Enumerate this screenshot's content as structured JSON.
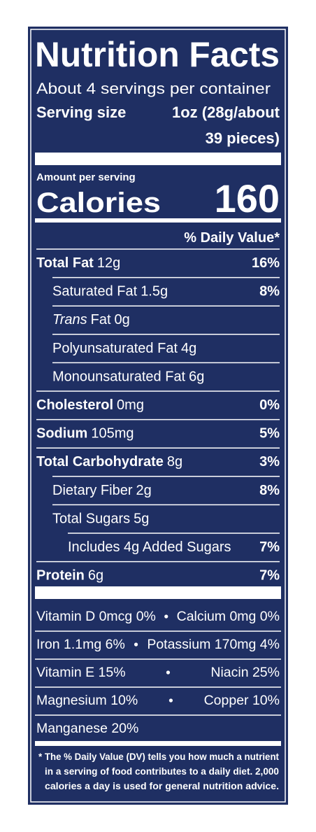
{
  "title": "Nutrition Facts",
  "servings": "About 4 servings per container",
  "serving_size": {
    "label": "Serving size",
    "value_lines": [
      "1oz (28g/about",
      "39 pieces)"
    ]
  },
  "amount_per_serving": "Amount per serving",
  "calories": {
    "label": "Calories",
    "value": "160"
  },
  "dv_header": "% Daily Value*",
  "nutrients": [
    {
      "name": "Total Fat",
      "amount": "12g",
      "dv": "16%",
      "sub": [
        {
          "name": "Saturated Fat",
          "amount": "1.5g",
          "dv": "8%"
        },
        {
          "prefix": "Trans",
          "name": "Fat",
          "amount": "0g"
        },
        {
          "name": "Polyunsaturated Fat",
          "amount": "4g"
        },
        {
          "name": "Monounsaturated Fat",
          "amount": "6g"
        }
      ]
    },
    {
      "name": "Cholesterol",
      "amount": "0mg",
      "dv": "0%"
    },
    {
      "name": "Sodium",
      "amount": "105mg",
      "dv": "5%"
    },
    {
      "name": "Total Carbohydrate",
      "amount": "8g",
      "dv": "3%",
      "sub": [
        {
          "name": "Dietary Fiber",
          "amount": "2g",
          "dv": "8%"
        },
        {
          "name": "Total Sugars",
          "amount": "5g",
          "sub": [
            {
              "name": "Includes 4g Added Sugars",
              "dv": "7%"
            }
          ]
        }
      ]
    },
    {
      "name": "Protein",
      "amount": "6g",
      "dv": "7%"
    }
  ],
  "micronutrients": [
    [
      "Vitamin D 0mcg 0%",
      "Calcium 0mg 0%"
    ],
    [
      "Iron 1.1mg 6%",
      "Potassium 170mg 4%"
    ],
    [
      "Vitamin E 15%",
      "Niacin 25%"
    ],
    [
      "Magnesium 10%",
      "Copper 10%"
    ],
    [
      "Manganese 20%"
    ]
  ],
  "footnote_lines": [
    "* The % Daily Value (DV) tells you how much a nutrient",
    "in a serving of food contributes to a daily diet. 2,000",
    "calories a day is used for general nutrition advice."
  ]
}
